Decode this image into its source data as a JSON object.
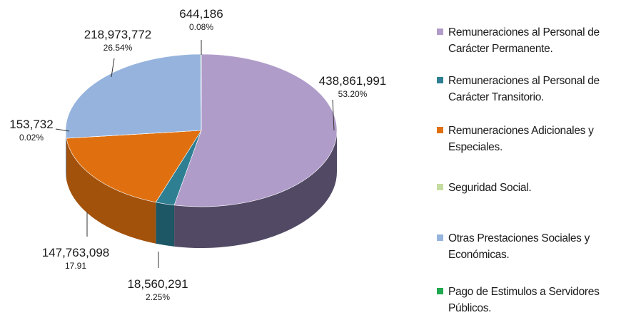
{
  "chart_data": {
    "type": "pie",
    "style": "3d",
    "title": "",
    "slices": [
      {
        "label": "Remuneraciones al Personal de Carácter Permanente.",
        "value": 438861991,
        "value_label": "438,861,991",
        "percent_label": "53.20%",
        "color": "#b09cc9",
        "side_color": "#524a65"
      },
      {
        "label": "Remuneraciones al Personal de Carácter Transitorio.",
        "value": 18560291,
        "value_label": "18,560,291",
        "percent_label": "2.25%",
        "color": "#2f7f93",
        "side_color": "#1d5664"
      },
      {
        "label": "Remuneraciones Adicionales y Especiales.",
        "value": 147763098,
        "value_label": "147,763,098",
        "percent_label": "17.91",
        "color": "#e0700f",
        "side_color": "#a3520c"
      },
      {
        "label": "Seguridad Social.",
        "value": 153732,
        "value_label": "153,732",
        "percent_label": "0.02%",
        "color": "#c5dca0",
        "side_color": "#8fa274"
      },
      {
        "label": "Otras Prestaciones Sociales y Económicas.",
        "value": 218973772,
        "value_label": "218,973,772",
        "percent_label": "26.54%",
        "color": "#95b3dd",
        "side_color": "#6a83a6"
      },
      {
        "label": "Pago de Estimulos a Servidores Públicos.",
        "value": 644186,
        "value_label": "644,186",
        "percent_label": "0.08%",
        "color": "#1fa84f",
        "side_color": "#147a38"
      }
    ],
    "legend_placement": "right"
  }
}
